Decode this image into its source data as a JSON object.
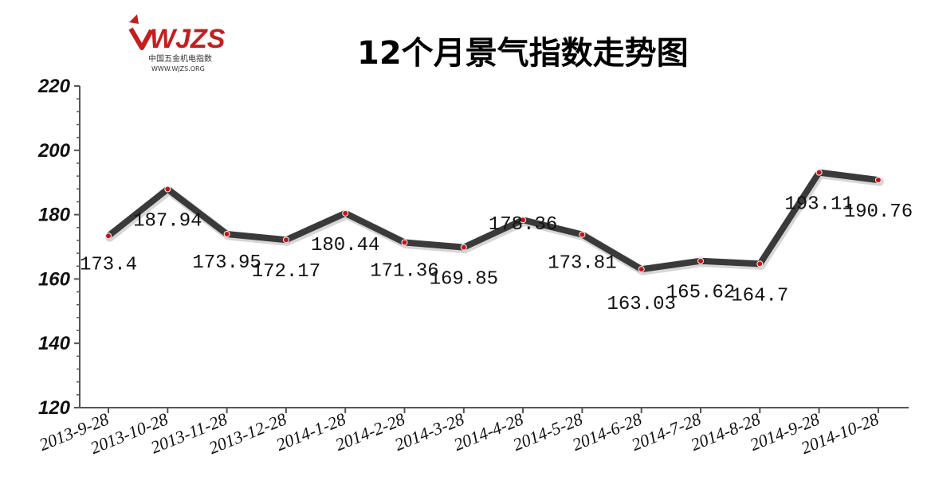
{
  "logo": {
    "mark": "WJZS",
    "subtitle": "中国五金机电指数",
    "url": "WWW.WJZS.ORG"
  },
  "chart_data": {
    "type": "line",
    "title": "12个月景气指数走势图",
    "xlabel": "",
    "ylabel": "",
    "ylim": [
      120,
      220
    ],
    "yticks": [
      120,
      140,
      160,
      180,
      200,
      220
    ],
    "categories": [
      "2013-9-28",
      "2013-10-28",
      "2013-11-28",
      "2013-12-28",
      "2014-1-28",
      "2014-2-28",
      "2014-3-28",
      "2014-4-28",
      "2014-5-28",
      "2014-6-28",
      "2014-7-28",
      "2014-8-28",
      "2014-9-28",
      "2014-10-28"
    ],
    "series": [
      {
        "values": [
          173.4,
          187.94,
          173.95,
          172.17,
          180.44,
          171.36,
          169.85,
          178.36,
          173.81,
          163.03,
          165.62,
          164.7,
          193.11,
          190.76
        ],
        "labels": [
          "173.4",
          "187.94",
          "173.95",
          "172.17",
          "180.44",
          "171.36",
          "169.85",
          "178.36",
          "173.81",
          "163.03",
          "165.62",
          "164.7",
          "193.11",
          "190.76"
        ]
      }
    ],
    "grid": false,
    "legend": "none",
    "colors": {
      "line": "#3a3a3a",
      "marker": "#cc1111",
      "axis": "#555555"
    }
  }
}
